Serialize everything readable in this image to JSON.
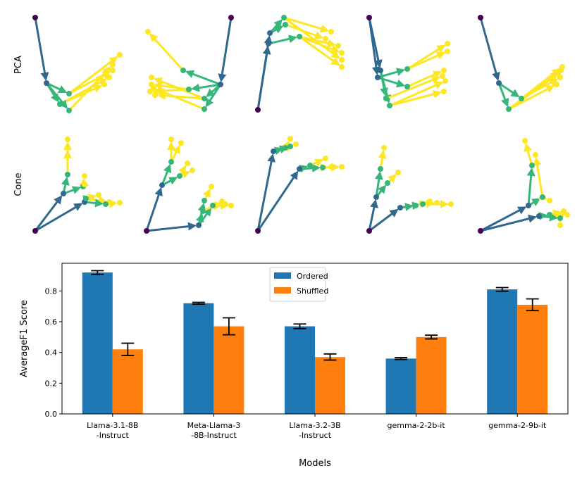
{
  "row_labels": [
    "PCA",
    "Cone"
  ],
  "colors": {
    "root": "#440154",
    "level1": "#31688e",
    "level2": "#35b779",
    "level3": "#fde725"
  },
  "chart_data": {
    "type": "bar",
    "xlabel": "Models",
    "ylabel": "AverageF1 Score",
    "categories": [
      "Llama-3.1-8B\n-Instruct",
      "Meta-Llama-3\n-8B-Instruct",
      "Llama-3.2-3B\n-Instruct",
      "gemma-2-2b-it",
      "gemma-2-9b-it"
    ],
    "ylim": [
      0,
      0.98
    ],
    "yticks": [
      "0.0",
      "0.2",
      "0.4",
      "0.6",
      "0.8"
    ],
    "grid": false,
    "legend_position": "top-center",
    "series": [
      {
        "name": "Ordered",
        "color": "#1f77b4",
        "values": [
          0.92,
          0.72,
          0.57,
          0.36,
          0.81
        ],
        "errors": [
          0.012,
          0.006,
          0.015,
          0.006,
          0.012
        ]
      },
      {
        "name": "Shuffled",
        "color": "#ff7f0e",
        "values": [
          0.42,
          0.57,
          0.37,
          0.5,
          0.71
        ],
        "errors": [
          0.04,
          0.055,
          0.02,
          0.012,
          0.038
        ]
      }
    ]
  }
}
